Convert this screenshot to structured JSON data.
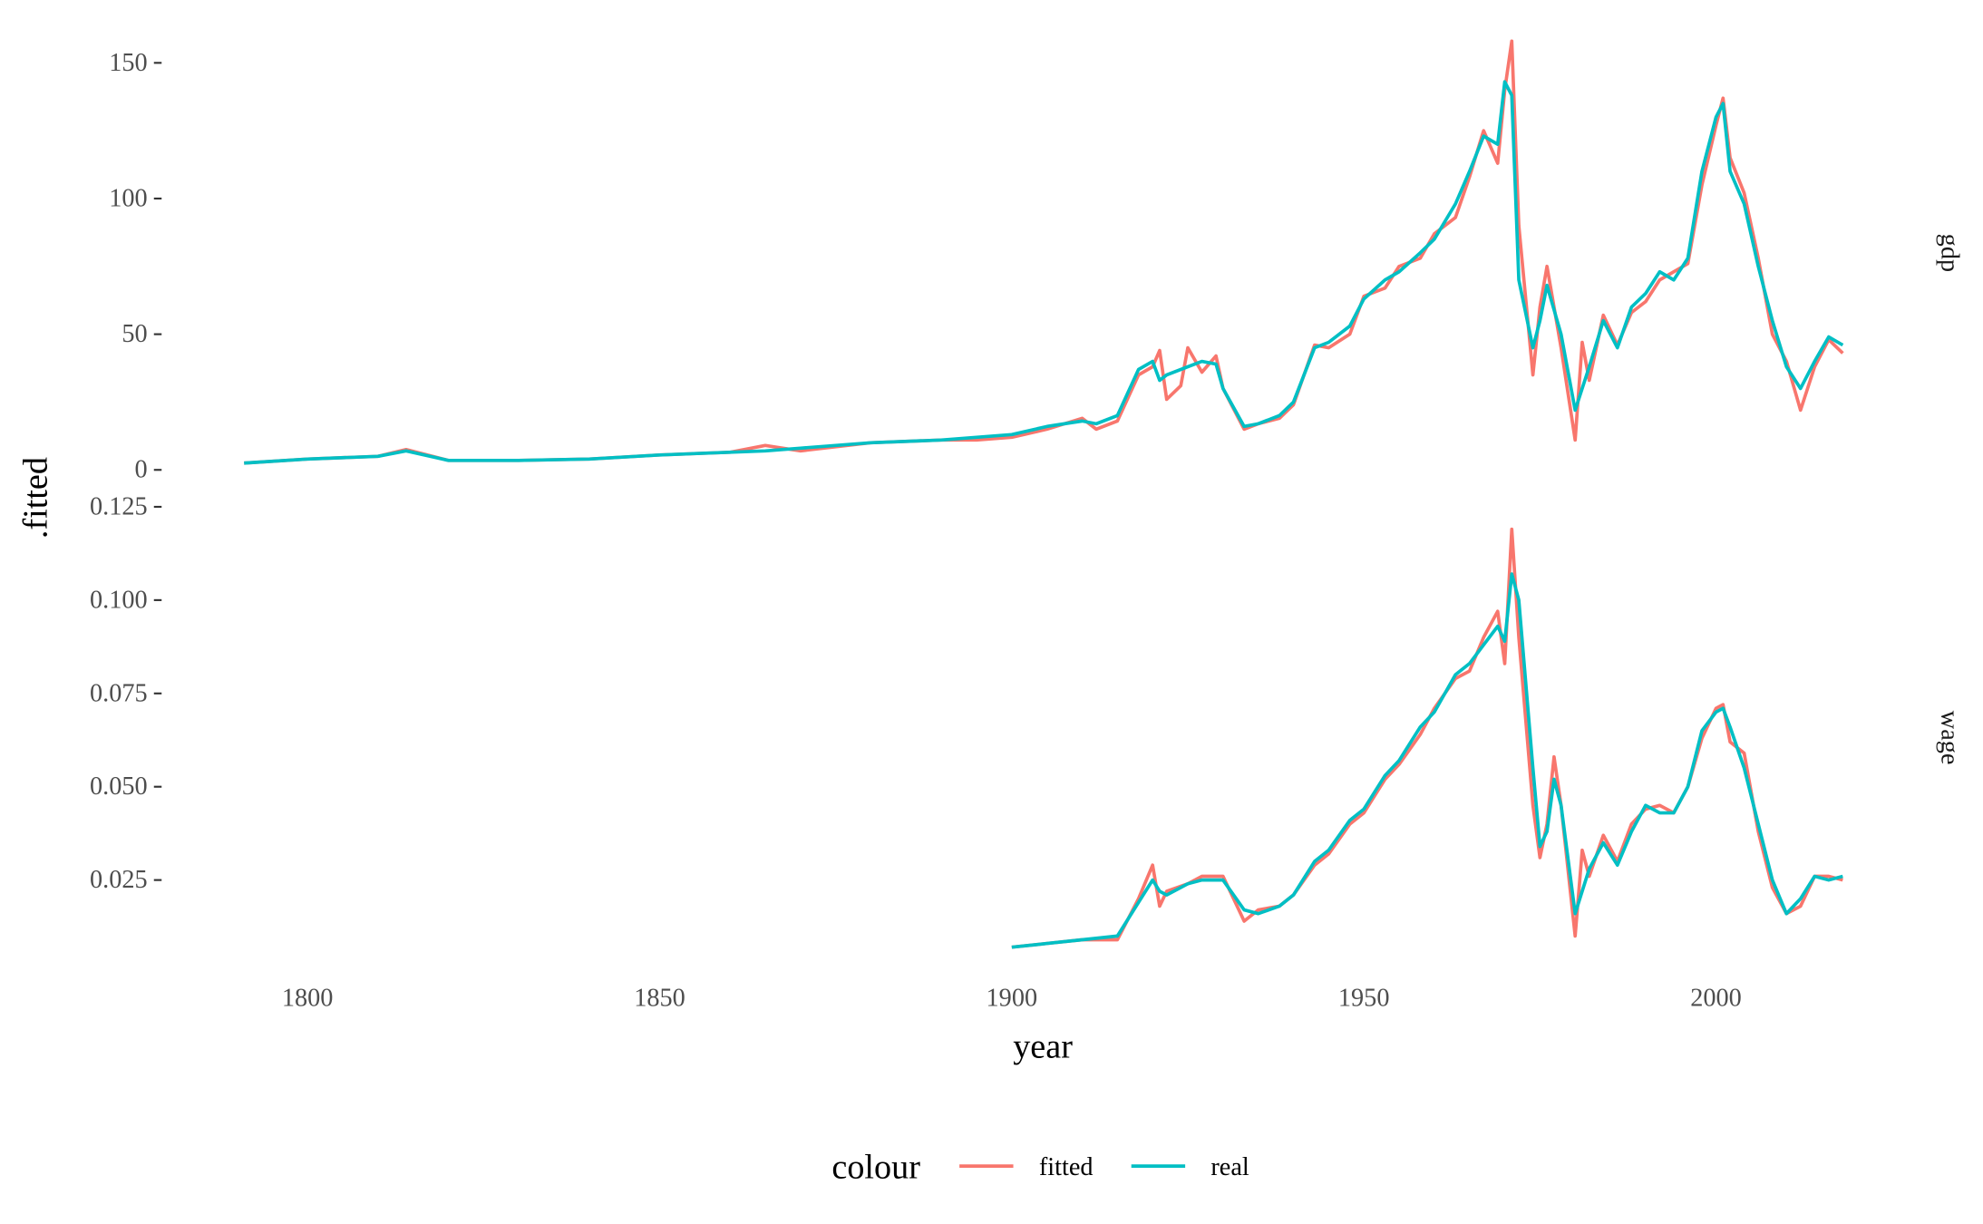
{
  "y_label": ".fitted",
  "legend_title": "colour",
  "chart_data": [
    {
      "type": "line",
      "facet": "gdp",
      "xlim": [
        1779.65,
        2029.35
      ],
      "ylim": [
        -7,
        166
      ],
      "yticks": [
        0,
        50,
        100,
        150
      ],
      "x": [
        1791,
        1800,
        1810,
        1814,
        1820,
        1830,
        1840,
        1850,
        1860,
        1865,
        1870,
        1880,
        1890,
        1895,
        1900,
        1905,
        1910,
        1912,
        1915,
        1918,
        1920,
        1921,
        1922,
        1924,
        1925,
        1927,
        1929,
        1930,
        1933,
        1935,
        1938,
        1940,
        1943,
        1945,
        1948,
        1950,
        1953,
        1955,
        1958,
        1960,
        1963,
        1965,
        1967,
        1969,
        1970,
        1971,
        1972,
        1974,
        1975,
        1976,
        1978,
        1980,
        1981,
        1982,
        1984,
        1986,
        1988,
        1990,
        1992,
        1994,
        1996,
        1998,
        2000,
        2001,
        2002,
        2004,
        2006,
        2008,
        2010,
        2012,
        2014,
        2016,
        2018
      ],
      "series": [
        {
          "name": "fitted",
          "color": "#F8766D",
          "values": [
            2.5,
            4,
            5,
            7.5,
            3.5,
            3.5,
            4,
            5.5,
            6.5,
            9,
            7,
            10,
            11,
            11,
            12,
            15,
            19,
            15,
            18,
            35,
            38,
            44,
            26,
            31,
            45,
            36,
            42,
            30,
            15,
            17,
            19,
            24,
            46,
            45,
            50,
            64,
            67,
            75,
            78,
            87,
            93,
            108,
            125,
            113,
            140,
            158,
            90,
            35,
            60,
            75,
            45,
            11,
            47,
            33,
            57,
            46,
            58,
            62,
            70,
            73,
            76,
            105,
            127,
            137,
            115,
            102,
            78,
            50,
            40,
            22,
            38,
            48,
            43
          ]
        },
        {
          "name": "real",
          "color": "#00BFC4",
          "values": [
            2.5,
            4,
            5,
            7,
            3.5,
            3.5,
            4,
            5.5,
            6.5,
            7,
            8,
            10,
            11,
            12,
            13,
            16,
            18,
            17,
            20,
            37,
            40,
            33,
            35,
            37,
            38,
            40,
            39,
            30,
            16,
            17,
            20,
            25,
            45,
            47,
            53,
            63,
            70,
            73,
            80,
            85,
            98,
            110,
            123,
            120,
            143,
            138,
            70,
            45,
            55,
            68,
            50,
            22,
            30,
            38,
            55,
            45,
            60,
            65,
            73,
            70,
            78,
            110,
            130,
            135,
            110,
            98,
            75,
            55,
            38,
            30,
            40,
            49,
            46
          ]
        }
      ]
    },
    {
      "type": "line",
      "facet": "wage",
      "x_label": "year",
      "xlim": [
        1779.65,
        2029.35
      ],
      "xticks": [
        1800,
        1850,
        1900,
        1950,
        2000
      ],
      "ylim": [
        0.003,
        0.1274
      ],
      "yticks": [
        0.025,
        {
          "value": 0.05,
          "label": "0.050"
        },
        0.075,
        {
          "value": 0.1,
          "label": "0.100"
        },
        0.125
      ],
      "x": [
        1900,
        1905,
        1910,
        1915,
        1918,
        1920,
        1921,
        1922,
        1925,
        1927,
        1930,
        1933,
        1935,
        1938,
        1940,
        1943,
        1945,
        1948,
        1950,
        1953,
        1955,
        1958,
        1960,
        1963,
        1965,
        1967,
        1969,
        1970,
        1971,
        1972,
        1974,
        1975,
        1976,
        1977,
        1978,
        1980,
        1981,
        1982,
        1984,
        1986,
        1988,
        1990,
        1992,
        1994,
        1996,
        1998,
        2000,
        2001,
        2002,
        2004,
        2006,
        2008,
        2010,
        2012,
        2014,
        2016,
        2018
      ],
      "series": [
        {
          "name": "fitted",
          "color": "#F8766D",
          "values": [
            0.007,
            0.008,
            0.009,
            0.009,
            0.02,
            0.029,
            0.018,
            0.022,
            0.024,
            0.026,
            0.026,
            0.014,
            0.017,
            0.018,
            0.021,
            0.029,
            0.032,
            0.04,
            0.043,
            0.052,
            0.056,
            0.064,
            0.071,
            0.079,
            0.081,
            0.09,
            0.097,
            0.083,
            0.119,
            0.09,
            0.045,
            0.031,
            0.04,
            0.058,
            0.045,
            0.01,
            0.033,
            0.026,
            0.037,
            0.03,
            0.04,
            0.044,
            0.045,
            0.043,
            0.05,
            0.063,
            0.071,
            0.072,
            0.062,
            0.059,
            0.038,
            0.023,
            0.016,
            0.018,
            0.026,
            0.026,
            0.025
          ]
        },
        {
          "name": "real",
          "color": "#00BFC4",
          "values": [
            0.007,
            0.008,
            0.009,
            0.01,
            0.019,
            0.025,
            0.022,
            0.021,
            0.024,
            0.025,
            0.025,
            0.017,
            0.016,
            0.018,
            0.021,
            0.03,
            0.033,
            0.041,
            0.044,
            0.053,
            0.057,
            0.066,
            0.07,
            0.08,
            0.083,
            0.088,
            0.093,
            0.089,
            0.107,
            0.1,
            0.055,
            0.034,
            0.038,
            0.052,
            0.045,
            0.016,
            0.022,
            0.028,
            0.035,
            0.029,
            0.038,
            0.045,
            0.043,
            0.043,
            0.05,
            0.065,
            0.07,
            0.071,
            0.066,
            0.055,
            0.04,
            0.025,
            0.016,
            0.02,
            0.026,
            0.025,
            0.026
          ]
        }
      ]
    }
  ]
}
